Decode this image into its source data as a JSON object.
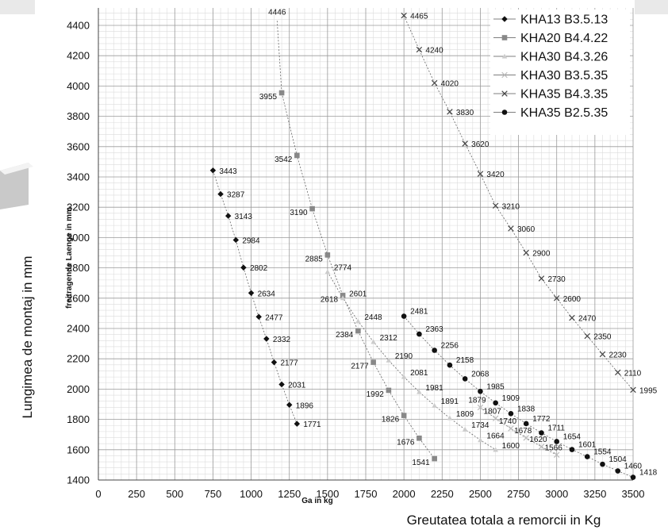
{
  "chart_data": {
    "type": "scatter",
    "xlabel": "Ga in kg",
    "ylabel": "freitragende Laenge in mm",
    "xlabel_ro": "Greutatea totala a remorcii in Kg",
    "ylabel_ro": "Lungimea de montaj in mm",
    "xlim": [
      0,
      3500
    ],
    "ylim": [
      1400,
      4500
    ],
    "x_ticks": [
      0,
      250,
      500,
      750,
      1000,
      1250,
      1500,
      1750,
      2000,
      2250,
      2500,
      2750,
      3000,
      3250,
      3500
    ],
    "y_ticks": [
      1400,
      1600,
      1800,
      2000,
      2200,
      2400,
      2600,
      2800,
      3000,
      3200,
      3400,
      3600,
      3800,
      4000,
      4200,
      4400
    ],
    "grid": true,
    "legend_position": "top-right",
    "series": [
      {
        "name": "KHA13 B3.5.13",
        "marker": "diamond",
        "color": "#111111",
        "x": [
          750,
          800,
          850,
          900,
          950,
          1000,
          1050,
          1100,
          1150,
          1200,
          1250,
          1300
        ],
        "y": [
          3443,
          3287,
          3143,
          2984,
          2802,
          2634,
          2477,
          2332,
          2177,
          2031,
          1896,
          1771
        ],
        "labels": [
          "3443",
          "3287",
          "3143",
          "2984",
          "2802",
          "2634",
          "2477",
          "2332",
          "2177",
          "2031",
          "1896",
          "1771"
        ]
      },
      {
        "name": "KHA20 B4.4.22",
        "marker": "square",
        "color": "#888888",
        "x": [
          1200,
          1300,
          1400,
          1500,
          1600,
          1700,
          1800,
          1900,
          2000,
          2100,
          2200
        ],
        "y": [
          3955,
          3542,
          3190,
          2885,
          2618,
          2384,
          2177,
          1992,
          1826,
          1676,
          1541
        ],
        "labels": [
          "3955",
          "3542",
          "3190",
          "2885",
          "2618",
          "2384",
          "2177",
          "1992",
          "1826",
          "1676",
          "1541"
        ]
      },
      {
        "name": "KHA30 B4.3.26",
        "marker": "triangle",
        "color": "#cccccc",
        "x": [
          1500,
          1600,
          1700,
          1800,
          1900,
          2000,
          2100,
          2200,
          2300,
          2400,
          2500,
          2600
        ],
        "y": [
          2774,
          2601,
          2448,
          2312,
          2190,
          2081,
          1981,
          1891,
          1809,
          1734,
          1664,
          1600
        ],
        "labels": [
          "2774",
          "2601",
          "2448",
          "2312",
          "2190",
          "2081",
          "1981",
          "1891",
          "1809",
          "1734",
          "1664",
          "1600"
        ]
      },
      {
        "name": "KHA30 B3.5.35",
        "marker": "x",
        "color": "#bbbbbb",
        "x": [
          2500,
          2600,
          2700,
          2800,
          2900,
          3000
        ],
        "y": [
          1879,
          1807,
          1740,
          1678,
          1620,
          1566
        ],
        "labels": [
          "1879",
          "1807",
          "1740",
          "1678",
          "1620",
          "1566"
        ]
      },
      {
        "name": "KHA35 B4.3.35",
        "marker": "x",
        "color": "#444444",
        "x": [
          2000,
          2100,
          2200,
          2300,
          2400,
          2500,
          2600,
          2700,
          2800,
          2900,
          3000,
          3100,
          3200,
          3300,
          3400,
          3500
        ],
        "y": [
          4465,
          4240,
          4020,
          3830,
          3620,
          3420,
          3210,
          3060,
          2900,
          2730,
          2600,
          2470,
          2350,
          2230,
          2110,
          1995
        ],
        "labels": [
          "4465",
          "4240",
          "4020",
          "3830",
          "3620",
          "3420",
          "3210",
          "3060",
          "2900",
          "2730",
          "2600",
          "2470",
          "2350",
          "2230",
          "2110",
          "1995"
        ]
      },
      {
        "name": "KHA35 B2.5.35",
        "marker": "circle",
        "color": "#111111",
        "x": [
          2000,
          2100,
          2200,
          2300,
          2400,
          2500,
          2600,
          2700,
          2800,
          2900,
          3000,
          3100,
          3200,
          3300,
          3400,
          3500
        ],
        "y": [
          2481,
          2363,
          2256,
          2158,
          2068,
          1985,
          1909,
          1838,
          1772,
          1711,
          1654,
          1601,
          1554,
          1504,
          1460,
          1418
        ],
        "labels": [
          "2481",
          "2363",
          "2256",
          "2158",
          "2068",
          "1985",
          "1909",
          "1838",
          "1772",
          "1711",
          "1654",
          "1601",
          "1554",
          "1504",
          "1460",
          "1418"
        ]
      }
    ]
  }
}
